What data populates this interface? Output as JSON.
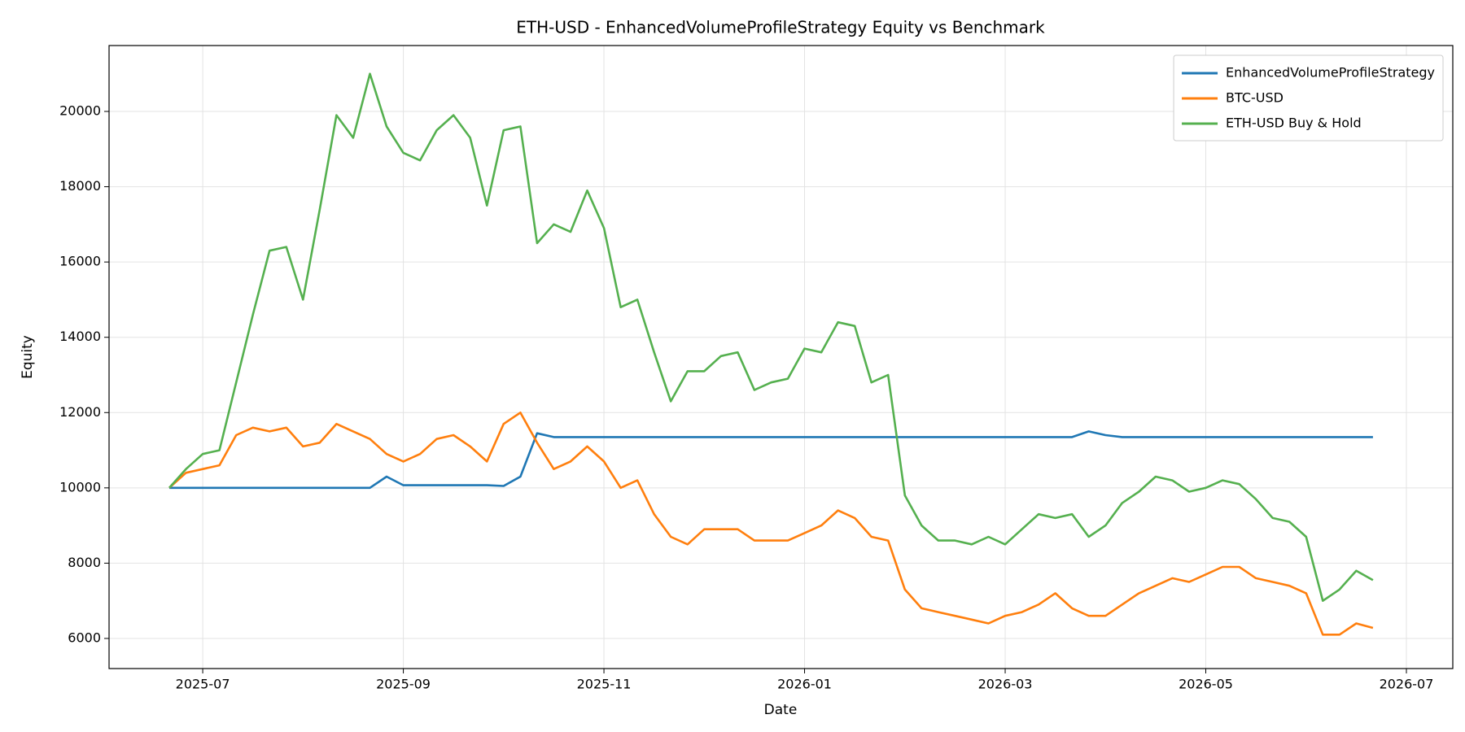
{
  "chart_data": {
    "type": "line",
    "title": "ETH-USD - EnhancedVolumeProfileStrategy Equity vs Benchmark",
    "x_label": "Date",
    "y_label": "Equity",
    "categories": [
      null,
      null,
      "2025-07",
      null,
      null,
      null,
      null,
      null,
      null,
      null,
      null,
      null,
      null,
      null,
      "2025-09",
      null,
      null,
      null,
      null,
      null,
      null,
      null,
      null,
      null,
      null,
      null,
      "2025-11",
      null,
      null,
      null,
      null,
      null,
      null,
      null,
      null,
      null,
      null,
      null,
      "2026-01",
      null,
      null,
      null,
      null,
      null,
      null,
      null,
      null,
      null,
      null,
      null,
      "2026-03",
      null,
      null,
      null,
      null,
      null,
      null,
      null,
      null,
      null,
      null,
      null,
      "2026-05",
      null,
      null,
      null,
      null,
      null,
      null,
      null,
      null,
      null,
      null,
      null,
      "2026-07"
    ],
    "series": [
      {
        "name": "EnhancedVolumeProfileStrategy",
        "color": "#1f77b4",
        "values": [
          10000,
          10000,
          10000,
          10000,
          10000,
          10000,
          10000,
          10000,
          10000,
          10000,
          10000,
          10000,
          10000,
          10300,
          10070,
          10070,
          10070,
          10070,
          10070,
          10070,
          10050,
          10300,
          11450,
          11350,
          11350,
          11350,
          11350,
          11350,
          11350,
          11350,
          11350,
          11350,
          11350,
          11350,
          11350,
          11350,
          11350,
          11350,
          11350,
          11350,
          11350,
          11350,
          11350,
          11350,
          11350,
          11350,
          11350,
          11350,
          11350,
          11350,
          11350,
          11350,
          11350,
          11350,
          11350,
          11500,
          11400,
          11350,
          11350,
          11350,
          11350,
          11350,
          11350,
          11350,
          11350,
          11350,
          11350,
          11350,
          11350,
          11350,
          11350,
          11350,
          11350,
          null,
          null
        ]
      },
      {
        "name": "BTC-USD",
        "color": "#ff7f0e",
        "values": [
          10000,
          10400,
          10500,
          10600,
          11400,
          11600,
          11500,
          11600,
          11100,
          11200,
          11700,
          11500,
          11300,
          10900,
          10700,
          10900,
          11300,
          11400,
          11100,
          10700,
          11700,
          12000,
          11200,
          10500,
          10700,
          11100,
          10700,
          10000,
          10200,
          9300,
          8700,
          8500,
          8900,
          8900,
          8900,
          8600,
          8600,
          8600,
          8800,
          9000,
          9400,
          9200,
          8700,
          8600,
          7300,
          6800,
          6700,
          6600,
          6500,
          6400,
          6600,
          6700,
          6900,
          7200,
          6800,
          6600,
          6600,
          6900,
          7200,
          7400,
          7600,
          7500,
          7700,
          7900,
          7900,
          7600,
          7500,
          7400,
          7200,
          6100,
          6100,
          6400,
          6280,
          null,
          null
        ]
      },
      {
        "name": "ETH-USD Buy & Hold",
        "color": "#55b04f",
        "values": [
          10000,
          10500,
          10900,
          11000,
          12800,
          14600,
          16300,
          16400,
          15000,
          17400,
          19900,
          19300,
          21000,
          19600,
          18900,
          18700,
          19500,
          19900,
          19300,
          17500,
          19500,
          19600,
          16500,
          17000,
          16800,
          17900,
          16900,
          14800,
          15000,
          13600,
          12300,
          13100,
          13100,
          13500,
          13600,
          12600,
          12800,
          12900,
          13700,
          13600,
          14400,
          14300,
          12800,
          13000,
          9800,
          9000,
          8600,
          8600,
          8500,
          8700,
          8500,
          8900,
          9300,
          9200,
          9300,
          8700,
          9000,
          9600,
          9900,
          10300,
          10200,
          9900,
          10000,
          10200,
          10100,
          9700,
          9200,
          9100,
          8700,
          7000,
          7300,
          7800,
          7550,
          null,
          null
        ]
      }
    ],
    "ylim": [
      5200,
      21750
    ],
    "yticks": [
      6000,
      8000,
      10000,
      12000,
      14000,
      16000,
      18000,
      20000
    ],
    "grid": true,
    "legend": "upper right"
  }
}
